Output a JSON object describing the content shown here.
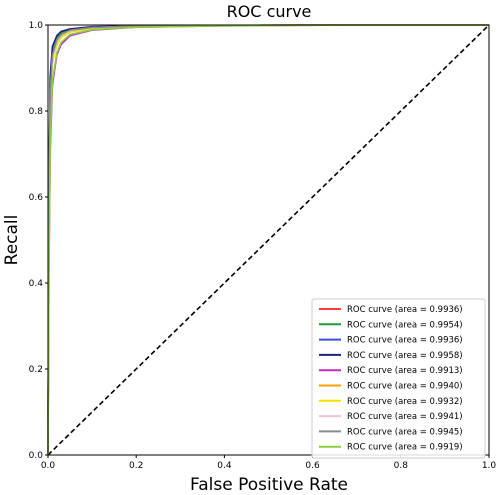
{
  "chart_data": {
    "type": "line",
    "title": "ROC curve",
    "xlabel": "False Positive Rate",
    "ylabel": "Recall",
    "xlim": [
      0,
      1
    ],
    "ylim": [
      0,
      1
    ],
    "xticks": [
      "0.0",
      "0.2",
      "0.4",
      "0.6",
      "0.8",
      "1.0"
    ],
    "yticks": [
      "0.0",
      "0.2",
      "0.4",
      "0.6",
      "0.8",
      "1.0"
    ],
    "grid": false,
    "legend_position": "bottom-right",
    "diagonal": {
      "x": [
        0,
        1
      ],
      "y": [
        0,
        1
      ],
      "color": "#000000",
      "style": "dashed"
    },
    "series": [
      {
        "name": "ROC curve (area = 0.9936)",
        "color": "#ff3b3b",
        "x": [
          0,
          0.002,
          0.005,
          0.01,
          0.02,
          0.03,
          0.05,
          0.1,
          0.2,
          0.4,
          0.7,
          1.0
        ],
        "y": [
          0,
          0.5,
          0.82,
          0.92,
          0.96,
          0.975,
          0.985,
          0.993,
          0.997,
          0.999,
          1.0,
          1.0
        ]
      },
      {
        "name": "ROC curve (area = 0.9954)",
        "color": "#1e9e3a",
        "x": [
          0,
          0.002,
          0.005,
          0.01,
          0.02,
          0.03,
          0.05,
          0.1,
          0.2,
          0.4,
          0.7,
          1.0
        ],
        "y": [
          0,
          0.55,
          0.86,
          0.94,
          0.97,
          0.982,
          0.99,
          0.995,
          0.998,
          0.999,
          1.0,
          1.0
        ]
      },
      {
        "name": "ROC curve (area = 0.9936)",
        "color": "#3a4fd6",
        "x": [
          0,
          0.002,
          0.005,
          0.01,
          0.02,
          0.03,
          0.05,
          0.1,
          0.2,
          0.4,
          0.7,
          1.0
        ],
        "y": [
          0,
          0.52,
          0.83,
          0.92,
          0.955,
          0.972,
          0.984,
          0.992,
          0.997,
          0.999,
          1.0,
          1.0
        ]
      },
      {
        "name": "ROC curve (area = 0.9958)",
        "color": "#1a237e",
        "x": [
          0,
          0.002,
          0.005,
          0.01,
          0.02,
          0.03,
          0.05,
          0.1,
          0.2,
          0.4,
          0.7,
          1.0
        ],
        "y": [
          0,
          0.6,
          0.88,
          0.95,
          0.975,
          0.985,
          0.991,
          0.996,
          0.998,
          0.999,
          1.0,
          1.0
        ]
      },
      {
        "name": "ROC curve (area = 0.9913)",
        "color": "#c02fc0",
        "x": [
          0,
          0.002,
          0.005,
          0.01,
          0.02,
          0.03,
          0.05,
          0.1,
          0.2,
          0.4,
          0.7,
          1.0
        ],
        "y": [
          0,
          0.4,
          0.7,
          0.86,
          0.93,
          0.955,
          0.975,
          0.988,
          0.995,
          0.998,
          1.0,
          1.0
        ]
      },
      {
        "name": "ROC curve (area = 0.9940)",
        "color": "#f4a300",
        "x": [
          0,
          0.002,
          0.005,
          0.01,
          0.02,
          0.03,
          0.05,
          0.1,
          0.2,
          0.4,
          0.7,
          1.0
        ],
        "y": [
          0,
          0.5,
          0.82,
          0.92,
          0.96,
          0.976,
          0.986,
          0.993,
          0.997,
          0.999,
          1.0,
          1.0
        ]
      },
      {
        "name": "ROC curve (area = 0.9932)",
        "color": "#f2e600",
        "x": [
          0,
          0.002,
          0.005,
          0.01,
          0.02,
          0.03,
          0.05,
          0.1,
          0.2,
          0.4,
          0.7,
          1.0
        ],
        "y": [
          0,
          0.48,
          0.8,
          0.91,
          0.955,
          0.972,
          0.984,
          0.992,
          0.997,
          0.999,
          1.0,
          1.0
        ]
      },
      {
        "name": "ROC curve (area = 0.9941)",
        "color": "#f7bcd6",
        "x": [
          0,
          0.002,
          0.005,
          0.01,
          0.02,
          0.03,
          0.05,
          0.1,
          0.2,
          0.4,
          0.7,
          1.0
        ],
        "y": [
          0,
          0.5,
          0.83,
          0.92,
          0.962,
          0.977,
          0.987,
          0.994,
          0.997,
          0.999,
          1.0,
          1.0
        ]
      },
      {
        "name": "ROC curve (area = 0.9945)",
        "color": "#8a8a8a",
        "x": [
          0,
          0.002,
          0.005,
          0.01,
          0.02,
          0.03,
          0.05,
          0.1,
          0.2,
          0.4,
          0.7,
          1.0
        ],
        "y": [
          0,
          0.52,
          0.84,
          0.93,
          0.965,
          0.978,
          0.988,
          0.994,
          0.998,
          0.999,
          1.0,
          1.0
        ]
      },
      {
        "name": "ROC curve (area = 0.9919)",
        "color": "#8ccf3a",
        "x": [
          0,
          0.002,
          0.005,
          0.01,
          0.02,
          0.03,
          0.05,
          0.1,
          0.2,
          0.4,
          0.7,
          1.0
        ],
        "y": [
          0,
          0.42,
          0.72,
          0.87,
          0.935,
          0.96,
          0.978,
          0.989,
          0.995,
          0.998,
          1.0,
          1.0
        ]
      }
    ]
  }
}
